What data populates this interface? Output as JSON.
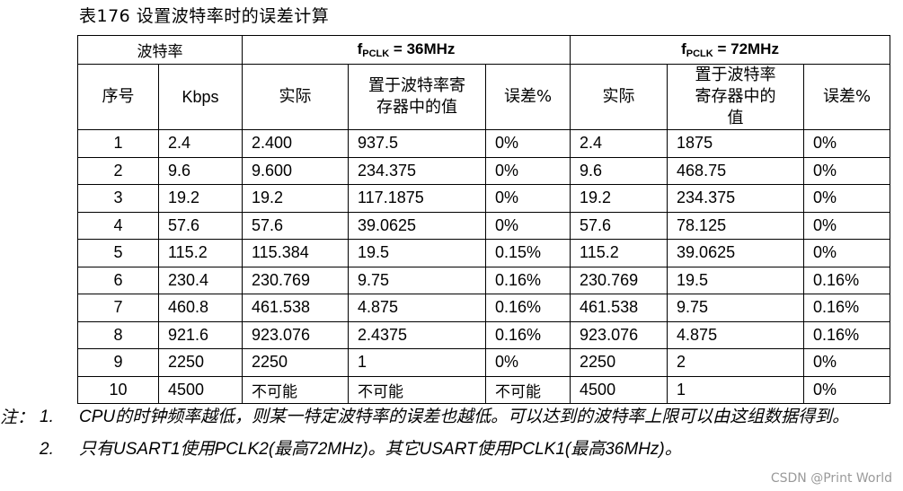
{
  "caption": "表176  设置波特率时的误差计算",
  "header": {
    "group_label": "波特率",
    "f1_prefix": "f",
    "f1_sub": "PCLK",
    "f1_suffix": " = 36MHz",
    "f2_prefix": "f",
    "f2_sub": "PCLK",
    "f2_suffix": " = 72MHz",
    "col_index": "序号",
    "col_kbps": "Kbps",
    "col_actual_1": "实际",
    "col_reg_1": "置于波特率寄存器中的值",
    "col_err_1": "误差%",
    "col_actual_2": "实际",
    "col_reg_2": "置于波特率寄存器中的值",
    "col_err_2": "误差%"
  },
  "rows": [
    [
      "1",
      "2.4",
      "2.400",
      "937.5",
      "0%",
      "2.4",
      "1875",
      "0%"
    ],
    [
      "2",
      "9.6",
      "9.600",
      "234.375",
      "0%",
      "9.6",
      "468.75",
      "0%"
    ],
    [
      "3",
      "19.2",
      "19.2",
      "117.1875",
      "0%",
      "19.2",
      "234.375",
      "0%"
    ],
    [
      "4",
      "57.6",
      "57.6",
      "39.0625",
      "0%",
      "57.6",
      "78.125",
      "0%"
    ],
    [
      "5",
      "115.2",
      "115.384",
      "19.5",
      "0.15%",
      "115.2",
      "39.0625",
      "0%"
    ],
    [
      "6",
      "230.4",
      "230.769",
      "9.75",
      "0.16%",
      "230.769",
      "19.5",
      "0.16%"
    ],
    [
      "7",
      "460.8",
      "461.538",
      "4.875",
      "0.16%",
      "461.538",
      "9.75",
      "0.16%"
    ],
    [
      "8",
      "921.6",
      "923.076",
      "2.4375",
      "0.16%",
      "923.076",
      "4.875",
      "0.16%"
    ],
    [
      "9",
      "2250",
      "2250",
      "1",
      "0%",
      "2250",
      "2",
      "0%"
    ],
    [
      "10",
      "4500",
      "不可能",
      "不可能",
      "不可能",
      "4500",
      "1",
      "0%"
    ]
  ],
  "notes": {
    "label": "注：",
    "items": [
      {
        "num": "1.",
        "text": "CPU的时钟频率越低，则某一特定波特率的误差也越低。可以达到的波特率上限可以由这组数据得到。"
      },
      {
        "num": "2.",
        "text": "只有USART1使用PCLK2(最高72MHz)。其它USART使用PCLK1(最高36MHz)。"
      }
    ]
  },
  "watermark": "CSDN @Print World"
}
